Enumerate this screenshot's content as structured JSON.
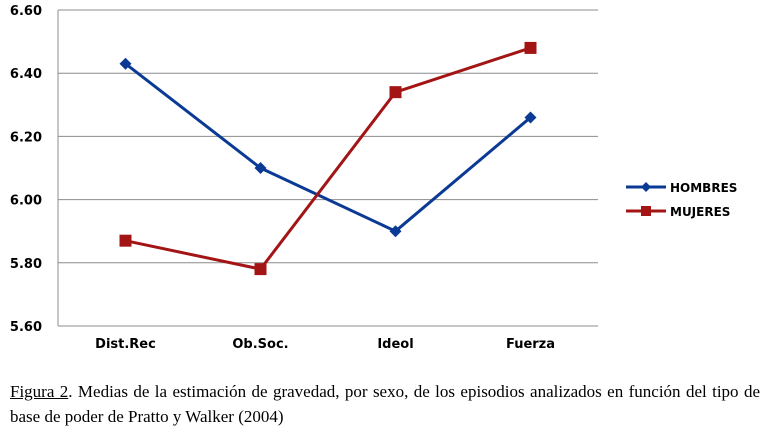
{
  "chart_data": {
    "type": "line",
    "categories": [
      "Dist.Rec",
      "Ob.Soc.",
      "Ideol",
      "Fuerza"
    ],
    "series": [
      {
        "name": "HOMBRES",
        "values": [
          6.43,
          6.1,
          5.9,
          6.26
        ],
        "color": "#0B3A94",
        "marker": "diamond"
      },
      {
        "name": "MUJERES",
        "values": [
          5.87,
          5.78,
          6.34,
          6.48
        ],
        "color": "#A31515",
        "marker": "square"
      }
    ],
    "ylim": [
      5.6,
      6.6
    ],
    "yticks": [
      "5.60",
      "5.80",
      "6.00",
      "6.20",
      "6.40",
      "6.60"
    ],
    "grid": true,
    "legend_position": "right"
  },
  "caption": {
    "label": "Figura 2",
    "text": ". Medias de la estimación de gravedad, por sexo, de los episodios analizados en función del tipo de base de poder de Pratto y Walker (2004)"
  }
}
